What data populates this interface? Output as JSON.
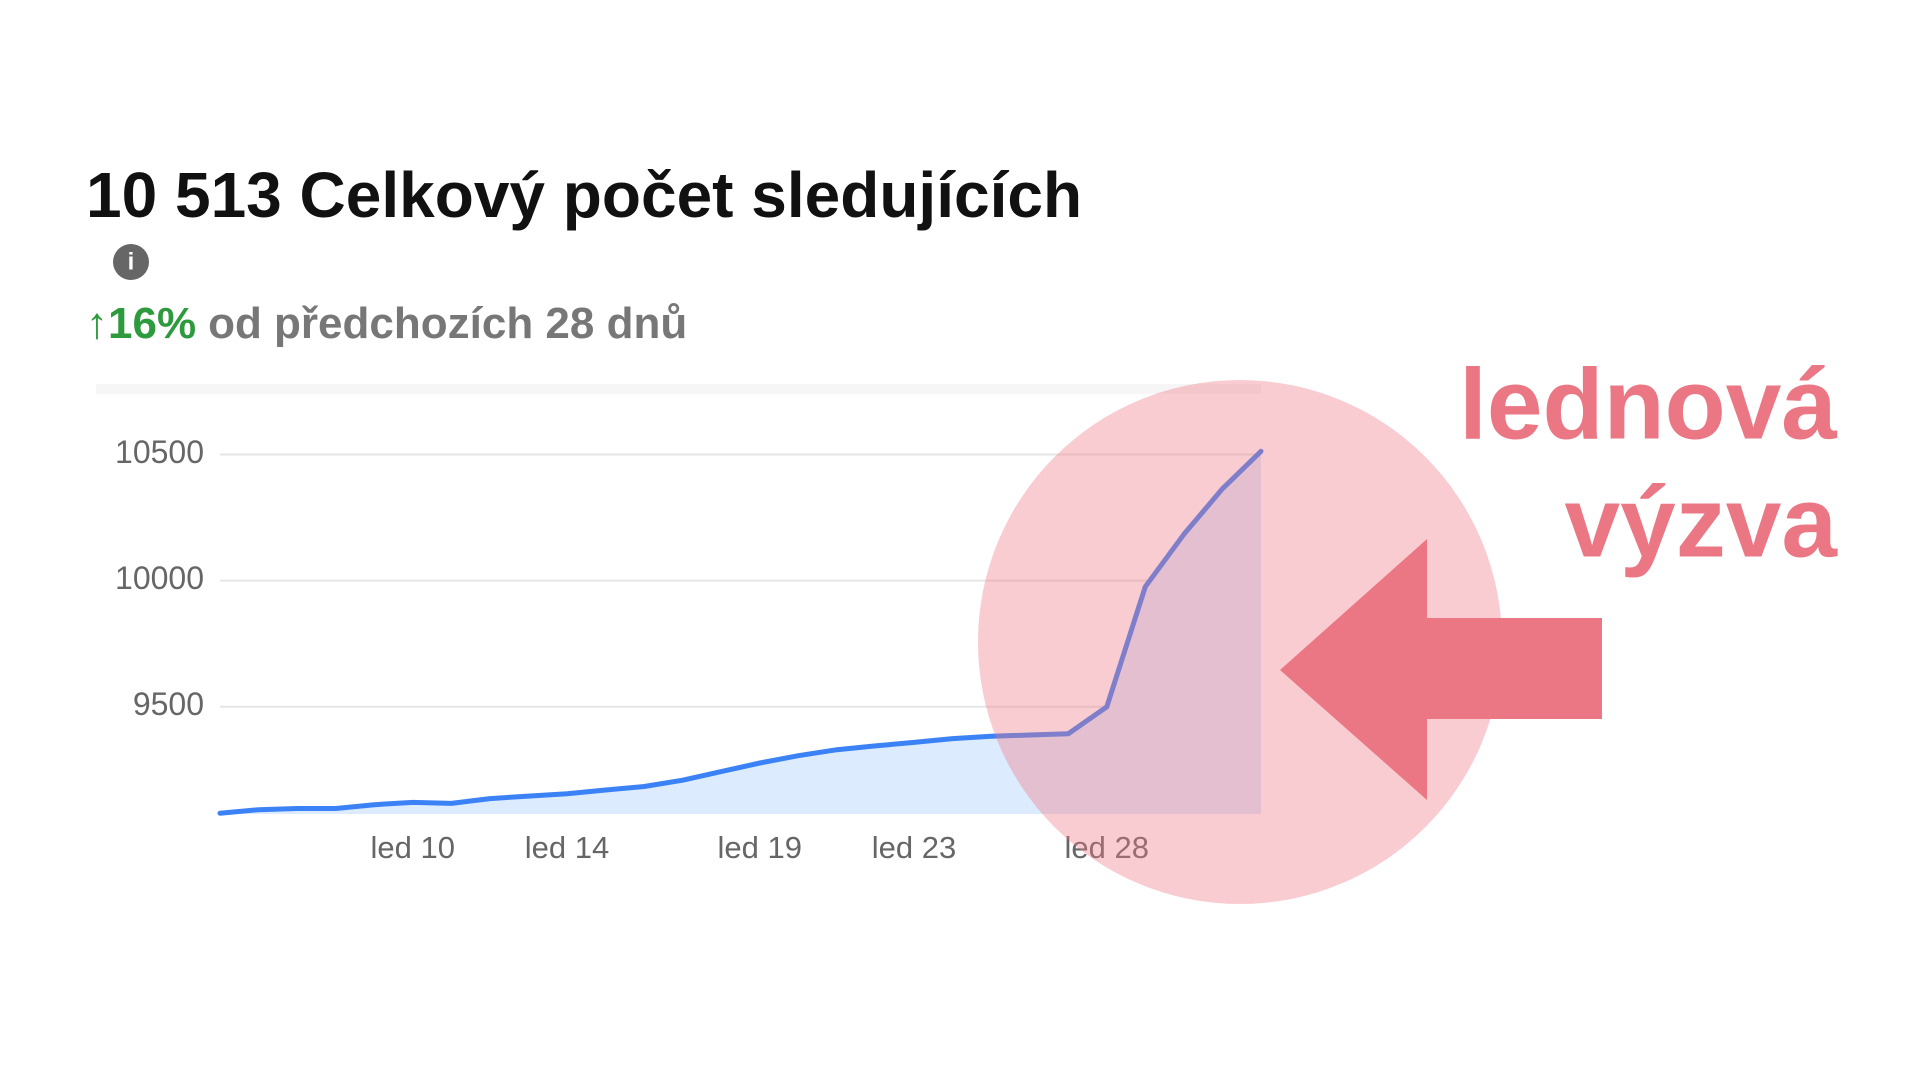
{
  "chart_data": {
    "type": "line",
    "title": "10 513 Celkový počet sledujících",
    "change": "↑16%",
    "subtitle": "od předchozích 28 dnů",
    "annotation": [
      "lednová",
      "výzva"
    ],
    "categories": [
      null,
      null,
      null,
      null,
      null,
      "led 10",
      null,
      null,
      null,
      "led 14",
      null,
      null,
      null,
      null,
      "led 19",
      null,
      null,
      null,
      "led 23",
      null,
      null,
      null,
      null,
      "led 28",
      null,
      null,
      null,
      null
    ],
    "values": [
      9078,
      9092,
      9097,
      9097,
      9112,
      9121,
      9117,
      9136,
      9146,
      9155,
      9170,
      9184,
      9209,
      9243,
      9277,
      9306,
      9330,
      9345,
      9359,
      9374,
      9383,
      9388,
      9393,
      9500,
      9976,
      10184,
      10364,
      10513
    ],
    "color": "#3b82f6",
    "fill_color": "#dcebfd",
    "ylim": [
      9075,
      10740
    ],
    "yticks": [
      9500,
      10000,
      10500
    ],
    "grid": true
  }
}
